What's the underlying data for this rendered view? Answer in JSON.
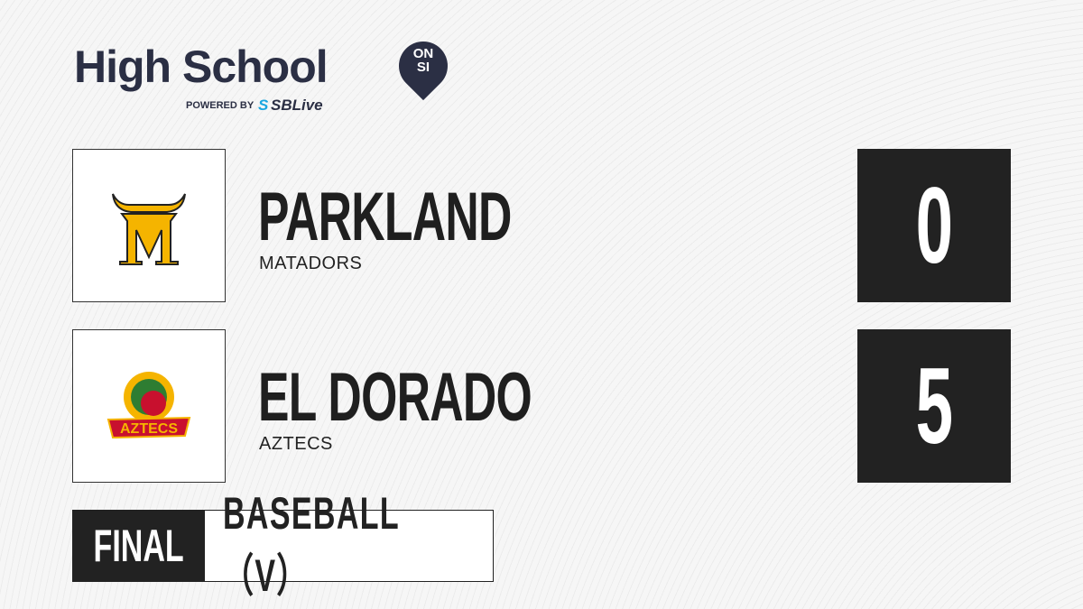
{
  "brand": {
    "title": "High School",
    "badge_top": "ON",
    "badge_bottom": "SI",
    "powered_by": "POWERED BY",
    "partner_prefix": "S",
    "partner": "SBLive"
  },
  "teams": [
    {
      "name": "PARKLAND",
      "mascot": "MATADORS",
      "score": "0",
      "logo_color": "#f5b400"
    },
    {
      "name": "EL DORADO",
      "mascot": "AZTECS",
      "score": "5",
      "logo_color": "#c8102e"
    }
  ],
  "status": "FINAL",
  "sport": "BASEBALL（V）"
}
